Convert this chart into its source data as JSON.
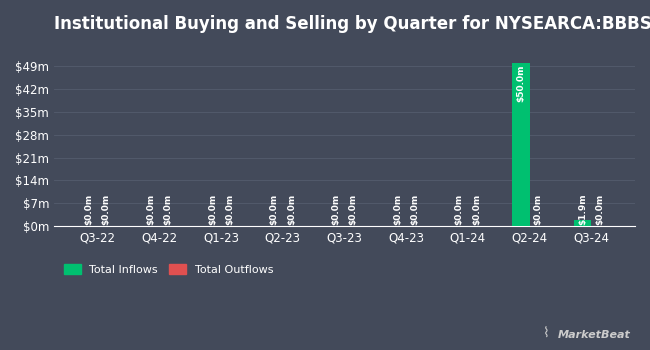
{
  "title": "Institutional Buying and Selling by Quarter for NYSEARCA:BBBS",
  "quarters": [
    "Q3-22",
    "Q4-22",
    "Q1-23",
    "Q2-23",
    "Q3-23",
    "Q4-23",
    "Q1-24",
    "Q2-24",
    "Q3-24"
  ],
  "inflows": [
    0.0,
    0.0,
    0.0,
    0.0,
    0.0,
    0.0,
    0.0,
    50.0,
    1.9
  ],
  "outflows": [
    0.0,
    0.0,
    0.0,
    0.0,
    0.0,
    0.0,
    0.0,
    0.0,
    0.0
  ],
  "inflow_labels": [
    "$0.0m",
    "$0.0m",
    "$0.0m",
    "$0.0m",
    "$0.0m",
    "$0.0m",
    "$0.0m",
    "$50.0m",
    "$1.9m"
  ],
  "outflow_labels": [
    "$0.0m",
    "$0.0m",
    "$0.0m",
    "$0.0m",
    "$0.0m",
    "$0.0m",
    "$0.0m",
    "$0.0m",
    "$0.0m"
  ],
  "inflow_color": "#00c070",
  "outflow_color": "#e05050",
  "bg_color": "#434a5a",
  "plot_bg_color": "#434a5a",
  "text_color": "#ffffff",
  "grid_color": "#545c6e",
  "yticks": [
    0,
    7,
    14,
    21,
    28,
    35,
    42,
    49
  ],
  "ytick_labels": [
    "$0m",
    "$7m",
    "$14m",
    "$21m",
    "$28m",
    "$35m",
    "$42m",
    "$49m"
  ],
  "ylim": [
    0,
    56
  ],
  "title_fontsize": 12,
  "axis_fontsize": 8.5,
  "label_fontsize": 6.5,
  "legend_fontsize": 8,
  "bar_width": 0.28
}
